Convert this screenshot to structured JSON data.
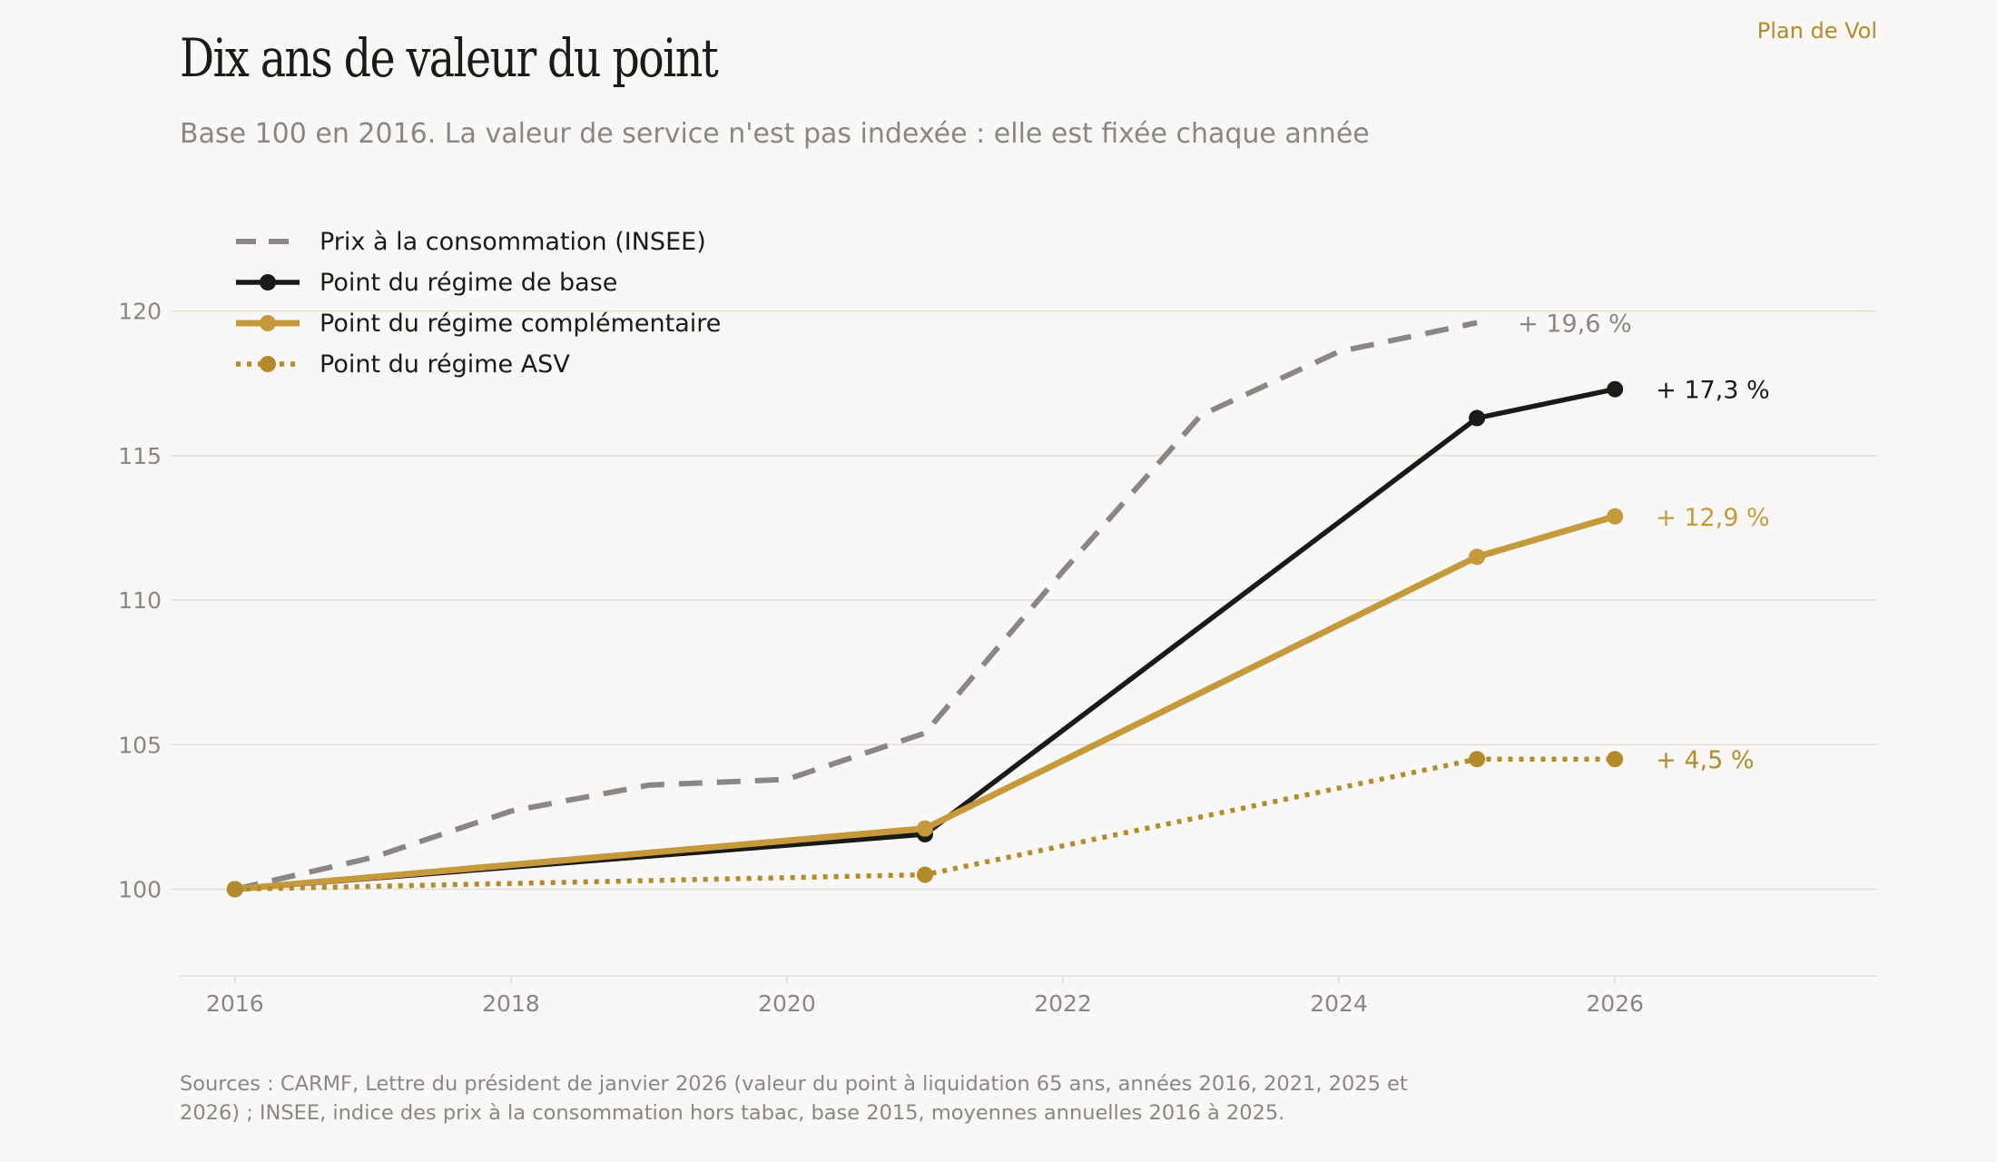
{
  "brand": "Plan de Vol",
  "title": "Dix ans de valeur du point",
  "subtitle": "Base 100 en 2016. La valeur de service n'est pas indexée : elle est fixée chaque année",
  "sources": "Sources : CARMF, Lettre du président de janvier 2026 (valeur du point à liquidation 65 ans, années 2016, 2021, 2025 et 2026) ; INSEE, indice des prix à la consommation hors tabac, base 2015, moyennes annuelles 2016 à 2025.",
  "colors": {
    "cpi": "#8a8780",
    "base": "#1c1a17",
    "complementaire": "#c49a3c",
    "asv": "#b38a2c",
    "grid": "#e2e0d2",
    "tick": "#8a8780"
  },
  "chart_data": {
    "type": "line",
    "xlim": [
      2015.6,
      2027.9
    ],
    "ylim": [
      97,
      120.4
    ],
    "xticks": [
      2016,
      2018,
      2020,
      2022,
      2024,
      2026
    ],
    "yticks": [
      100,
      105,
      110,
      115,
      120
    ],
    "grid": "horizontal",
    "legend_position": "top-left",
    "series": [
      {
        "name": "Prix à la consommation (INSEE)",
        "key": "cpi",
        "style": "dashed",
        "markers": false,
        "x": [
          2016,
          2017,
          2018,
          2019,
          2020,
          2021,
          2022,
          2023,
          2024,
          2025
        ],
        "y": [
          100,
          101.1,
          102.7,
          103.6,
          103.8,
          105.4,
          111.0,
          116.4,
          118.6,
          119.6
        ],
        "end_label": "+ 19,6 %"
      },
      {
        "name": "Point du régime de base",
        "key": "base",
        "style": "solid",
        "markers": true,
        "x": [
          2016,
          2021,
          2025,
          2026
        ],
        "y": [
          100,
          101.9,
          116.3,
          117.3
        ],
        "end_label": "+ 17,3 %"
      },
      {
        "name": "Point du régime complémentaire",
        "key": "complementaire",
        "style": "solid",
        "markers": true,
        "x": [
          2016,
          2021,
          2025,
          2026
        ],
        "y": [
          100,
          102.1,
          111.5,
          112.9
        ],
        "end_label": "+ 12,9 %"
      },
      {
        "name": "Point du régime ASV",
        "key": "asv",
        "style": "dotted",
        "markers": true,
        "x": [
          2016,
          2021,
          2025,
          2026
        ],
        "y": [
          100,
          100.5,
          104.5,
          104.5
        ],
        "end_label": "+ 4,5 %"
      }
    ]
  }
}
